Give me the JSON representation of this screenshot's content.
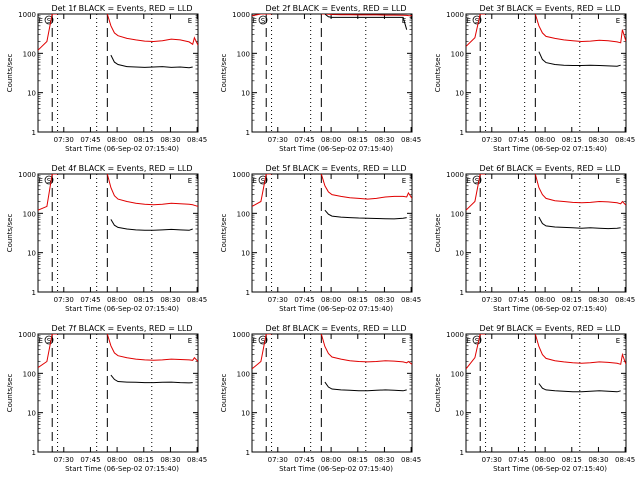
{
  "colors": {
    "events": "#000000",
    "lld": "#e00000",
    "axes": "#000000"
  },
  "chart_data": [
    {
      "type": "line",
      "title": "Det 1f BLACK = Events, RED = LLD",
      "xlabel": "Start Time (06-Sep-02 07:15:40)",
      "ylabel": "Counts/sec",
      "yscale": "log",
      "ylim": [
        1,
        1000
      ],
      "yticks": [
        "1",
        "10",
        "100",
        "1000"
      ],
      "xticks": [
        "07:30",
        "07:45",
        "08:00",
        "08:15",
        "08:30",
        "08:45"
      ],
      "flags": [
        "E",
        "S",
        "E"
      ],
      "x": [
        0,
        5,
        8,
        11,
        14,
        16,
        20,
        25,
        30,
        35,
        39,
        41,
        43,
        45,
        50,
        55,
        60,
        65,
        70,
        75,
        80,
        85,
        87,
        88,
        90
      ],
      "series": [
        {
          "values": [
            120,
            200,
            1000,
            1000,
            null,
            null,
            null,
            null,
            null,
            null,
            1000,
            500,
            330,
            280,
            240,
            220,
            205,
            200,
            210,
            230,
            220,
            195,
            170,
            250,
            160
          ]
        },
        {
          "values": [
            null,
            null,
            null,
            null,
            null,
            null,
            null,
            null,
            null,
            null,
            null,
            90,
            60,
            52,
            46,
            45,
            44,
            45,
            46,
            44,
            45,
            43,
            45,
            null,
            null
          ]
        }
      ]
    },
    {
      "type": "line",
      "title": "Det 2f BLACK = Events, RED = LLD",
      "xlabel": "Start Time (06-Sep-02 07:15:40)",
      "ylabel": "Counts/sec",
      "yscale": "log",
      "ylim": [
        1,
        1000
      ],
      "yticks": [
        "1",
        "10",
        "100",
        "1000"
      ],
      "xticks": [
        "07:30",
        "07:45",
        "08:00",
        "08:15",
        "08:30",
        "08:45"
      ],
      "flags": [
        "E",
        "S",
        "E"
      ],
      "x": [
        0,
        5,
        8,
        11,
        14,
        16,
        20,
        25,
        30,
        35,
        39,
        41,
        43,
        45,
        50,
        55,
        60,
        65,
        70,
        75,
        80,
        85,
        87,
        88,
        90
      ],
      "series": [
        {
          "values": [
            900,
            1000,
            1000,
            1000,
            null,
            null,
            null,
            null,
            null,
            null,
            1000,
            1000,
            980,
            970,
            960,
            960,
            950,
            950,
            950,
            940,
            940,
            930,
            920,
            910,
            900
          ]
        },
        {
          "values": [
            null,
            null,
            null,
            null,
            null,
            null,
            null,
            null,
            null,
            null,
            null,
            1000,
            850,
            820,
            820,
            820,
            820,
            820,
            820,
            820,
            820,
            820,
            400,
            null,
            null
          ]
        }
      ]
    },
    {
      "type": "line",
      "title": "Det 3f BLACK = Events, RED = LLD",
      "xlabel": "Start Time (06-Sep-02 07:15:40)",
      "ylabel": "Counts/sec",
      "yscale": "log",
      "ylim": [
        1,
        1000
      ],
      "yticks": [
        "1",
        "10",
        "100",
        "1000"
      ],
      "xticks": [
        "07:30",
        "07:45",
        "08:00",
        "08:15",
        "08:30",
        "08:45"
      ],
      "flags": [
        "E",
        "S",
        "E"
      ],
      "x": [
        0,
        5,
        8,
        11,
        14,
        16,
        20,
        25,
        30,
        35,
        39,
        41,
        43,
        45,
        50,
        55,
        60,
        65,
        70,
        75,
        80,
        85,
        87,
        88,
        90
      ],
      "series": [
        {
          "values": [
            150,
            250,
            1000,
            1000,
            null,
            null,
            null,
            null,
            null,
            null,
            1000,
            500,
            330,
            270,
            240,
            220,
            210,
            200,
            205,
            215,
            210,
            195,
            185,
            400,
            200
          ]
        },
        {
          "values": [
            null,
            null,
            null,
            null,
            null,
            null,
            null,
            null,
            null,
            null,
            null,
            110,
            70,
            58,
            52,
            50,
            49,
            49,
            50,
            49,
            48,
            47,
            50,
            null,
            null
          ]
        }
      ]
    },
    {
      "type": "line",
      "title": "Det 4f BLACK = Events, RED = LLD",
      "xlabel": "Start Time (06-Sep-02 07:15:40)",
      "ylabel": "Counts/sec",
      "yscale": "log",
      "ylim": [
        1,
        1000
      ],
      "yticks": [
        "1",
        "10",
        "100",
        "1000"
      ],
      "xticks": [
        "07:30",
        "07:45",
        "08:00",
        "08:15",
        "08:30",
        "08:45"
      ],
      "flags": [
        "E",
        "S",
        "E"
      ],
      "x": [
        0,
        5,
        8,
        11,
        14,
        16,
        20,
        25,
        30,
        35,
        39,
        41,
        43,
        45,
        50,
        55,
        60,
        65,
        70,
        75,
        80,
        85,
        87,
        88,
        90
      ],
      "series": [
        {
          "values": [
            120,
            150,
            1000,
            1000,
            null,
            null,
            null,
            null,
            null,
            null,
            1000,
            450,
            280,
            230,
            200,
            180,
            170,
            165,
            170,
            180,
            175,
            170,
            165,
            160,
            150
          ]
        },
        {
          "values": [
            null,
            null,
            null,
            null,
            null,
            null,
            null,
            null,
            null,
            null,
            null,
            70,
            50,
            44,
            40,
            38,
            37,
            37,
            38,
            39,
            38,
            37,
            40,
            null,
            null
          ]
        }
      ]
    },
    {
      "type": "line",
      "title": "Det 5f BLACK = Events, RED = LLD",
      "xlabel": "Start Time (06-Sep-02 07:15:40)",
      "ylabel": "Counts/sec",
      "yscale": "log",
      "ylim": [
        1,
        1000
      ],
      "yticks": [
        "1",
        "10",
        "100",
        "1000"
      ],
      "xticks": [
        "07:30",
        "07:45",
        "08:00",
        "08:15",
        "08:30",
        "08:45"
      ],
      "flags": [
        "E",
        "S",
        "E"
      ],
      "x": [
        0,
        5,
        8,
        11,
        14,
        16,
        20,
        25,
        30,
        35,
        39,
        41,
        43,
        45,
        50,
        55,
        60,
        65,
        70,
        75,
        80,
        85,
        87,
        88,
        90
      ],
      "series": [
        {
          "values": [
            150,
            200,
            1000,
            1000,
            null,
            null,
            null,
            null,
            null,
            null,
            1000,
            500,
            350,
            300,
            270,
            250,
            240,
            230,
            240,
            260,
            270,
            270,
            260,
            330,
            240
          ]
        },
        {
          "values": [
            null,
            null,
            null,
            null,
            null,
            null,
            null,
            null,
            null,
            null,
            null,
            120,
            95,
            85,
            80,
            78,
            76,
            75,
            74,
            73,
            72,
            75,
            78,
            null,
            null
          ]
        }
      ]
    },
    {
      "type": "line",
      "title": "Det 6f BLACK = Events, RED = LLD",
      "xlabel": "Start Time (06-Sep-02 07:15:40)",
      "ylabel": "Counts/sec",
      "yscale": "log",
      "ylim": [
        1,
        1000
      ],
      "yticks": [
        "1",
        "10",
        "100",
        "1000"
      ],
      "xticks": [
        "07:30",
        "07:45",
        "08:00",
        "08:15",
        "08:30",
        "08:45"
      ],
      "flags": [
        "E",
        "S",
        "E"
      ],
      "x": [
        0,
        5,
        8,
        11,
        14,
        16,
        20,
        25,
        30,
        35,
        39,
        41,
        43,
        45,
        50,
        55,
        60,
        65,
        70,
        75,
        80,
        85,
        87,
        88,
        90
      ],
      "series": [
        {
          "values": [
            120,
            200,
            1000,
            1000,
            null,
            null,
            null,
            null,
            null,
            null,
            1000,
            450,
            300,
            240,
            210,
            200,
            190,
            185,
            190,
            200,
            195,
            185,
            175,
            200,
            160
          ]
        },
        {
          "values": [
            null,
            null,
            null,
            null,
            null,
            null,
            null,
            null,
            null,
            null,
            null,
            80,
            55,
            48,
            45,
            44,
            43,
            42,
            43,
            42,
            41,
            42,
            43,
            null,
            null
          ]
        }
      ]
    },
    {
      "type": "line",
      "title": "Det 7f BLACK = Events, RED = LLD",
      "xlabel": "Start Time (06-Sep-02 07:15:40)",
      "ylabel": "Counts/sec",
      "yscale": "log",
      "ylim": [
        1,
        1000
      ],
      "yticks": [
        "1",
        "10",
        "100",
        "1000"
      ],
      "xticks": [
        "07:30",
        "07:45",
        "08:00",
        "08:15",
        "08:30",
        "08:45"
      ],
      "flags": [
        "E",
        "S",
        "E"
      ],
      "x": [
        0,
        5,
        8,
        11,
        14,
        16,
        20,
        25,
        30,
        35,
        39,
        41,
        43,
        45,
        50,
        55,
        60,
        65,
        70,
        75,
        80,
        85,
        87,
        88,
        90
      ],
      "series": [
        {
          "values": [
            140,
            200,
            1000,
            1000,
            null,
            null,
            null,
            null,
            null,
            null,
            1000,
            500,
            330,
            280,
            250,
            230,
            220,
            215,
            220,
            230,
            225,
            220,
            215,
            250,
            200
          ]
        },
        {
          "values": [
            null,
            null,
            null,
            null,
            null,
            null,
            null,
            null,
            null,
            null,
            null,
            90,
            70,
            62,
            60,
            59,
            58,
            58,
            59,
            60,
            58,
            57,
            58,
            null,
            null
          ]
        }
      ]
    },
    {
      "type": "line",
      "title": "Det 8f BLACK = Events, RED = LLD",
      "xlabel": "Start Time (06-Sep-02 07:15:40)",
      "ylabel": "Counts/sec",
      "yscale": "log",
      "ylim": [
        1,
        1000
      ],
      "yticks": [
        "1",
        "10",
        "100",
        "1000"
      ],
      "xticks": [
        "07:30",
        "07:45",
        "08:00",
        "08:15",
        "08:30",
        "08:45"
      ],
      "flags": [
        "E",
        "S",
        "E"
      ],
      "x": [
        0,
        5,
        8,
        11,
        14,
        16,
        20,
        25,
        30,
        35,
        39,
        41,
        43,
        45,
        50,
        55,
        60,
        65,
        70,
        75,
        80,
        85,
        87,
        88,
        90
      ],
      "series": [
        {
          "values": [
            130,
            200,
            1000,
            1000,
            null,
            null,
            null,
            null,
            null,
            null,
            1000,
            480,
            320,
            260,
            230,
            210,
            200,
            195,
            200,
            210,
            205,
            195,
            185,
            200,
            170
          ]
        },
        {
          "values": [
            null,
            null,
            null,
            null,
            null,
            null,
            null,
            null,
            null,
            null,
            null,
            60,
            45,
            40,
            38,
            37,
            36,
            36,
            37,
            38,
            37,
            36,
            38,
            null,
            null
          ]
        }
      ]
    },
    {
      "type": "line",
      "title": "Det 9f BLACK = Events, RED = LLD",
      "xlabel": "Start Time (06-Sep-02 07:15:40)",
      "ylabel": "Counts/sec",
      "yscale": "log",
      "ylim": [
        1,
        1000
      ],
      "yticks": [
        "1",
        "10",
        "100",
        "1000"
      ],
      "xticks": [
        "07:30",
        "07:45",
        "08:00",
        "08:15",
        "08:30",
        "08:45"
      ],
      "flags": [
        "E",
        "S",
        "E"
      ],
      "x": [
        0,
        5,
        8,
        11,
        14,
        16,
        20,
        25,
        30,
        35,
        39,
        41,
        43,
        45,
        50,
        55,
        60,
        65,
        70,
        75,
        80,
        85,
        87,
        88,
        90
      ],
      "series": [
        {
          "values": [
            130,
            250,
            1000,
            1000,
            null,
            null,
            null,
            null,
            null,
            null,
            1000,
            480,
            300,
            240,
            210,
            195,
            185,
            180,
            185,
            195,
            190,
            180,
            170,
            300,
            170
          ]
        },
        {
          "values": [
            null,
            null,
            null,
            null,
            null,
            null,
            null,
            null,
            null,
            null,
            null,
            55,
            42,
            38,
            36,
            35,
            34,
            34,
            35,
            36,
            35,
            34,
            36,
            null,
            null
          ]
        }
      ]
    }
  ]
}
